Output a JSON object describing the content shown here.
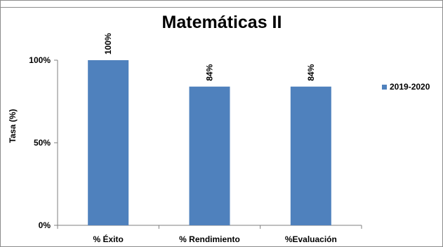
{
  "chart_data": {
    "type": "bar",
    "title": "Matemáticas II",
    "xlabel": "",
    "ylabel": "Tasa (%)",
    "categories": [
      "% Éxito",
      "% Rendimiento",
      "%Evaluación"
    ],
    "series": [
      {
        "name": "2019-2020",
        "values": [
          100,
          84,
          84
        ],
        "data_labels": [
          "100%",
          "84%",
          "84%"
        ],
        "color": "#4f81bd"
      }
    ],
    "ylim": [
      0,
      100
    ],
    "yticks": [
      0,
      50,
      100
    ],
    "ytick_labels": [
      "0%",
      "50%",
      "100%"
    ],
    "grid": false,
    "legend": "right"
  }
}
